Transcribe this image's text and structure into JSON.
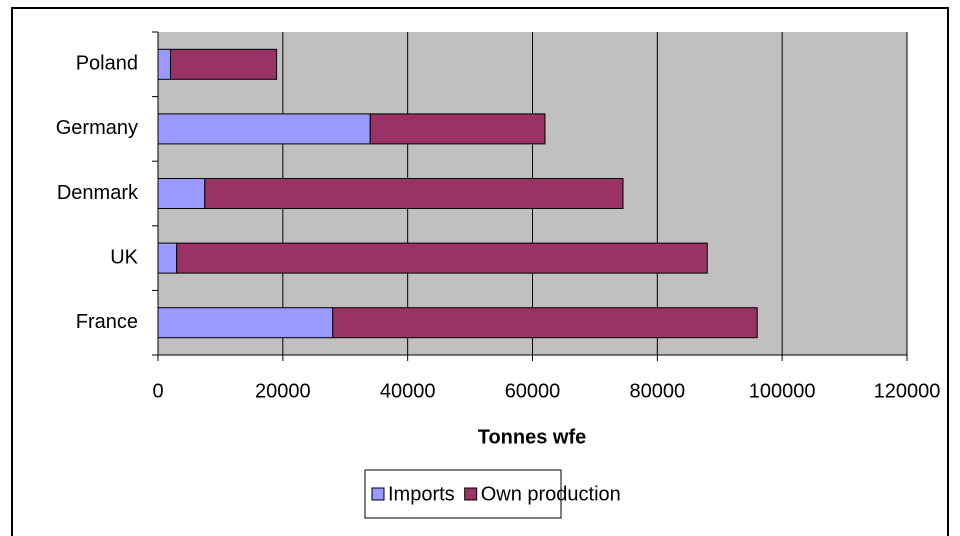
{
  "chart_data": {
    "type": "stacked-barh",
    "categories": [
      "France",
      "UK",
      "Denmark",
      "Germany",
      "Poland"
    ],
    "series": [
      {
        "name": "Imports",
        "color": "#9999ff",
        "values": [
          28000,
          3000,
          7500,
          34000,
          2000
        ]
      },
      {
        "name": "Own production",
        "color": "#993366",
        "values": [
          68000,
          85000,
          67000,
          28000,
          17000
        ]
      }
    ],
    "xlabel": "Tonnes wfe",
    "xlim": [
      0,
      120000
    ],
    "xticks": [
      0,
      20000,
      40000,
      60000,
      80000,
      100000,
      120000
    ],
    "grid": true,
    "legend": "bottom"
  }
}
